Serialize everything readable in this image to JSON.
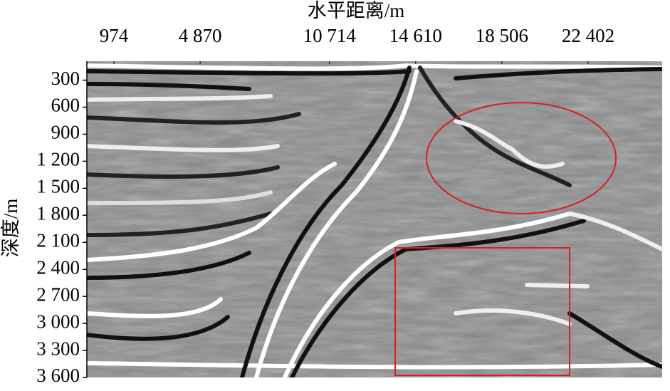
{
  "chart_data": {
    "type": "image",
    "title": "水平距离/m",
    "y_label": "深度/m",
    "xlim": [
      -250,
      25750
    ],
    "xticks": [
      974,
      {
        "value": 4870,
        "label": "4 870"
      },
      {
        "value": 10714,
        "label": "10 714"
      },
      {
        "value": 14610,
        "label": "14 610"
      },
      {
        "value": 18506,
        "label": "18 506"
      },
      {
        "value": 22402,
        "label": "22 402"
      }
    ],
    "ylim": [
      90,
      3600
    ],
    "yticks": [
      300,
      600,
      900,
      {
        "value": 1200,
        "label": "1 200"
      },
      {
        "value": 1500,
        "label": "1 500"
      },
      {
        "value": 1800,
        "label": "1 800"
      },
      {
        "value": 2100,
        "label": "2 100"
      },
      {
        "value": 2400,
        "label": "2 400"
      },
      {
        "value": 2700,
        "label": "2 700"
      },
      {
        "value": 3000,
        "label": "3 000"
      },
      {
        "value": 3300,
        "label": "3 300"
      },
      {
        "value": 3600,
        "label": "3 600"
      }
    ]
  }
}
